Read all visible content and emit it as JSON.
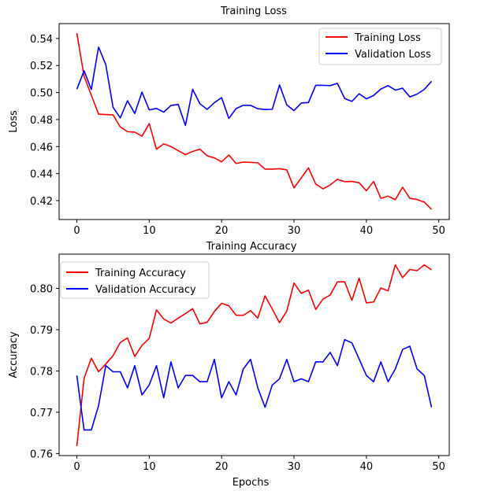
{
  "chart_data": [
    {
      "type": "line",
      "title": "Training Loss",
      "xlabel": "",
      "ylabel": "Loss",
      "xlim": [
        -2.45,
        51.45
      ],
      "ylim": [
        0.406,
        0.551
      ],
      "xticks": [
        0,
        10,
        20,
        30,
        40,
        50
      ],
      "yticks": [
        0.42,
        0.44,
        0.46,
        0.48,
        0.5,
        0.52,
        0.54
      ],
      "ytick_labels": [
        "0.42",
        "0.44",
        "0.46",
        "0.48",
        "0.50",
        "0.52",
        "0.54"
      ],
      "grid": false,
      "legend": "top-right",
      "x": [
        0,
        1,
        2,
        3,
        4,
        5,
        6,
        7,
        8,
        9,
        10,
        11,
        12,
        13,
        14,
        15,
        16,
        17,
        18,
        19,
        20,
        21,
        22,
        23,
        24,
        25,
        26,
        27,
        28,
        29,
        30,
        31,
        32,
        33,
        34,
        35,
        36,
        37,
        38,
        39,
        40,
        41,
        42,
        43,
        44,
        45,
        46,
        47,
        48,
        49
      ],
      "series": [
        {
          "name": "Training Loss",
          "color": "#ff0000",
          "values": [
            0.544,
            0.512,
            0.498,
            0.484,
            0.4837,
            0.4835,
            0.4745,
            0.471,
            0.4707,
            0.4677,
            0.477,
            0.458,
            0.462,
            0.46,
            0.457,
            0.454,
            0.4564,
            0.4581,
            0.4532,
            0.4516,
            0.4487,
            0.4538,
            0.4475,
            0.4485,
            0.4483,
            0.448,
            0.4433,
            0.4433,
            0.4436,
            0.4428,
            0.4294,
            0.4368,
            0.4442,
            0.4323,
            0.4287,
            0.4316,
            0.4358,
            0.434,
            0.4342,
            0.4332,
            0.4273,
            0.4342,
            0.4217,
            0.4233,
            0.4207,
            0.4299,
            0.4217,
            0.4208,
            0.4189,
            0.4135
          ]
        },
        {
          "name": "Validation Loss",
          "color": "#0000ff",
          "values": [
            0.5025,
            0.5161,
            0.5022,
            0.5336,
            0.5206,
            0.4891,
            0.4812,
            0.4939,
            0.4845,
            0.5003,
            0.4871,
            0.4882,
            0.4855,
            0.4904,
            0.4912,
            0.4756,
            0.5024,
            0.4917,
            0.4875,
            0.4925,
            0.4962,
            0.4808,
            0.4881,
            0.4906,
            0.4905,
            0.488,
            0.4874,
            0.4876,
            0.5056,
            0.4909,
            0.4866,
            0.4922,
            0.4926,
            0.5053,
            0.5053,
            0.5051,
            0.5068,
            0.4956,
            0.4934,
            0.4991,
            0.4953,
            0.4978,
            0.5026,
            0.5051,
            0.5018,
            0.5032,
            0.4968,
            0.4988,
            0.5023,
            0.5083
          ]
        }
      ]
    },
    {
      "type": "line",
      "title": "Training Accuracy",
      "xlabel": "Epochs",
      "ylabel": "Accuracy",
      "xlim": [
        -2.45,
        51.45
      ],
      "ylim": [
        0.7595,
        0.8083
      ],
      "xticks": [
        0,
        10,
        20,
        30,
        40,
        50
      ],
      "yticks": [
        0.76,
        0.77,
        0.78,
        0.79,
        0.8
      ],
      "ytick_labels": [
        "0.76",
        "0.77",
        "0.78",
        "0.79",
        "0.80"
      ],
      "grid": false,
      "legend": "top-left",
      "x": [
        0,
        1,
        2,
        3,
        4,
        5,
        6,
        7,
        8,
        9,
        10,
        11,
        12,
        13,
        14,
        15,
        16,
        17,
        18,
        19,
        20,
        21,
        22,
        23,
        24,
        25,
        26,
        27,
        28,
        29,
        30,
        31,
        32,
        33,
        34,
        35,
        36,
        37,
        38,
        39,
        40,
        41,
        42,
        43,
        44,
        45,
        46,
        47,
        48,
        49
      ],
      "series": [
        {
          "name": "Training Accuracy",
          "color": "#ff0000",
          "values": [
            0.7618,
            0.7782,
            0.7831,
            0.7798,
            0.7817,
            0.7837,
            0.7869,
            0.788,
            0.7835,
            0.7862,
            0.7879,
            0.7948,
            0.7926,
            0.7916,
            0.7928,
            0.7939,
            0.7951,
            0.7914,
            0.7918,
            0.7944,
            0.7964,
            0.7958,
            0.7935,
            0.7935,
            0.7946,
            0.7928,
            0.7982,
            0.795,
            0.7917,
            0.7945,
            0.8013,
            0.7988,
            0.7996,
            0.7949,
            0.7974,
            0.7984,
            0.8016,
            0.8016,
            0.7971,
            0.8025,
            0.7965,
            0.7967,
            0.8001,
            0.7994,
            0.8057,
            0.8026,
            0.8046,
            0.8043,
            0.8057,
            0.8045
          ]
        },
        {
          "name": "Validation Accuracy",
          "color": "#0000ff",
          "values": [
            0.7789,
            0.7657,
            0.7657,
            0.7716,
            0.7813,
            0.7798,
            0.7798,
            0.7759,
            0.7813,
            0.7742,
            0.7766,
            0.7813,
            0.7735,
            0.7822,
            0.7759,
            0.7789,
            0.7789,
            0.7774,
            0.7774,
            0.7828,
            0.7735,
            0.7774,
            0.7742,
            0.7805,
            0.7828,
            0.7759,
            0.7712,
            0.7766,
            0.7781,
            0.7828,
            0.7774,
            0.7781,
            0.7774,
            0.7822,
            0.7822,
            0.7845,
            0.7813,
            0.7876,
            0.7868,
            0.7829,
            0.7789,
            0.7774,
            0.7822,
            0.7774,
            0.7805,
            0.7852,
            0.786,
            0.7805,
            0.7789,
            0.7712
          ]
        }
      ]
    }
  ]
}
